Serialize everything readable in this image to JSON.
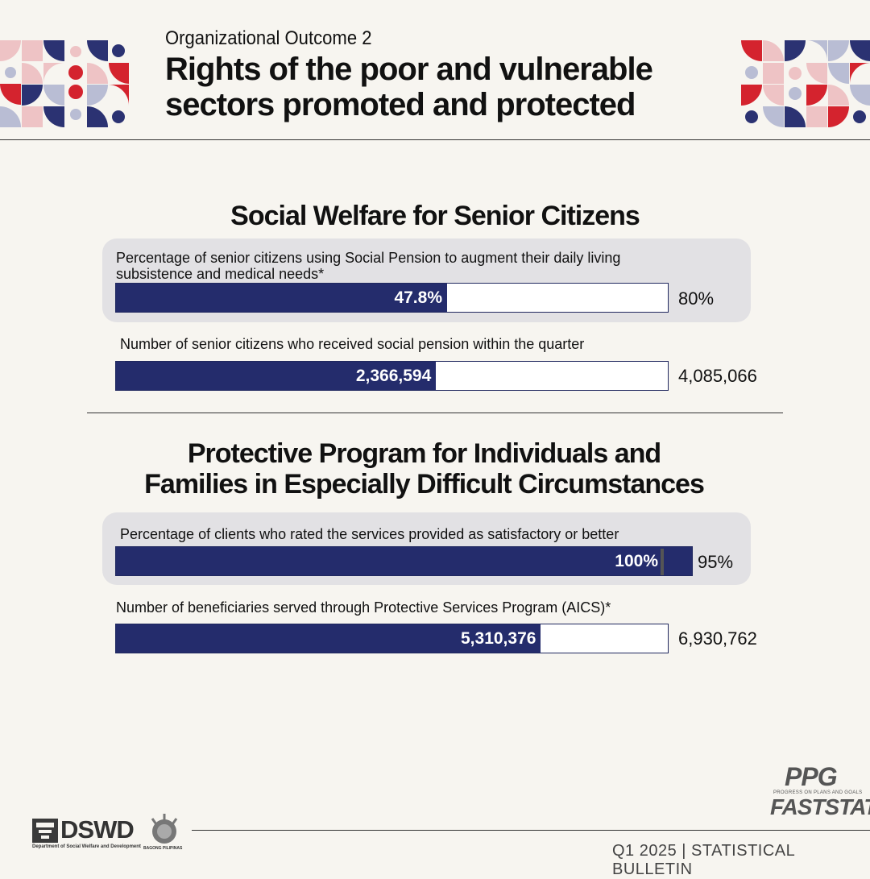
{
  "header": {
    "eyebrow": "Organizational Outcome 2",
    "title_line1": "Rights of the poor and vulnerable",
    "title_line2": "sectors promoted and protected"
  },
  "sections": [
    {
      "title": "Social Welfare for Senior Citizens",
      "metrics": [
        {
          "label_line1": "Percentage of senior citizens using Social Pension to augment their daily living",
          "label_line2": "subsistence and medical needs*",
          "accomplishment": "47.8%",
          "target": "80%"
        },
        {
          "label_line1": "Number of senior citizens who received social pension within the quarter",
          "accomplishment": "2,366,594",
          "target": "4,085,066"
        }
      ]
    },
    {
      "title_line1": "Protective Program for Individuals and",
      "title_line2": "Families in Especially Difficult Circumstances",
      "metrics": [
        {
          "label_line1": "Percentage of clients who rated the services provided as satisfactory or better",
          "accomplishment": "100%",
          "target": "95%"
        },
        {
          "label_line1": "Number of beneficiaries served through Protective Services Program (AICS)*",
          "accomplishment": "5,310,376",
          "target": "6,930,762"
        }
      ]
    }
  ],
  "chart_data": {
    "type": "bar",
    "orientation": "horizontal",
    "series": [
      {
        "name": "",
        "categories": [
          "Percentage of senior citizens using Social Pension to augment their daily living subsistence and medical needs*",
          "Number of senior citizens who received social pension within the quarter",
          "Percentage of clients who rated the services provided as satisfactory or better",
          "Number of beneficiaries served through Protective Services Program (AICS)*"
        ]
      }
    ],
    "bars": [
      {
        "actual": 47.8,
        "target": 80,
        "fill_fraction": 0.6
      },
      {
        "actual": 2366594,
        "target": 4085066,
        "fill_fraction": 0.58
      },
      {
        "actual": 100,
        "target": 95,
        "fill_fraction": 1.0
      },
      {
        "actual": 5310376,
        "target": 6930762,
        "fill_fraction": 0.77
      }
    ]
  },
  "branding": {
    "logo_text": "DSWD",
    "logo_subtext": "Department of Social Welfare and Development",
    "bagong_pilipinas": "BAGONG PILIPINAS",
    "ppg": "PPG",
    "ppg_sub": "PROGRESS ON PLANS AND GOALS",
    "faststat": "FASTSTAT",
    "footer": "Q1 2025 | STATISTICAL BULLETIN"
  },
  "colors": {
    "bar_fill": "#242c6c",
    "panel": "#e2e1e4",
    "deco_red": "#d4232e",
    "deco_navy": "#2b3272",
    "deco_pink": "#eec3c5",
    "deco_lavender": "#b9bdd4"
  }
}
